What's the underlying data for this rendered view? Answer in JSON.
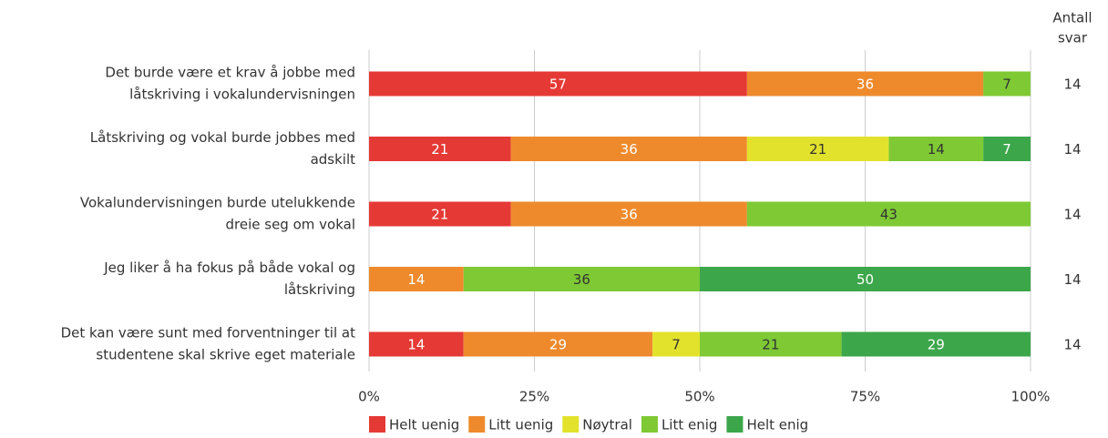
{
  "chart_data": {
    "type": "stacked_barh",
    "categories": [
      [
        "Det burde være et krav å jobbe med",
        "låtskriving i vokalundervisningen"
      ],
      [
        "Låtskriving og vokal burde jobbes med",
        "adskilt"
      ],
      [
        "Vokalundervisningen burde utelukkende",
        "dreie seg om vokal"
      ],
      [
        "Jeg liker å ha fokus på både vokal og",
        "låtskriving"
      ],
      [
        "Det kan være sunt med forventninger til at",
        "studentene skal skrive eget materiale"
      ]
    ],
    "series": [
      {
        "name": "Helt uenig",
        "color": "#e53935",
        "label_color": "#ffffff",
        "values": [
          57.14,
          21.43,
          21.43,
          null,
          14.29
        ],
        "value_labels": [
          "57",
          "21",
          "21",
          null,
          "14"
        ]
      },
      {
        "name": "Litt uenig",
        "color": "#ee8a2c",
        "label_color": "#ffffff",
        "values": [
          35.71,
          35.71,
          35.71,
          14.29,
          28.57
        ],
        "value_labels": [
          "36",
          "36",
          "36",
          "14",
          "29"
        ]
      },
      {
        "name": "Nøytral",
        "color": "#e2e22c",
        "label_color": "#333333",
        "values": [
          null,
          21.43,
          null,
          null,
          7.14
        ],
        "value_labels": [
          null,
          "21",
          null,
          null,
          "7"
        ]
      },
      {
        "name": "Litt enig",
        "color": "#7ec934",
        "label_color": "#333333",
        "values": [
          7.14,
          14.29,
          42.86,
          35.71,
          21.43
        ],
        "value_labels": [
          "7",
          "14",
          "43",
          "36",
          "21"
        ]
      },
      {
        "name": "Helt enig",
        "color": "#3ca64a",
        "label_color": "#ffffff",
        "values": [
          null,
          7.14,
          null,
          50,
          28.57
        ],
        "value_labels": [
          null,
          "7",
          null,
          "50",
          "29"
        ]
      }
    ],
    "xlim": [
      0,
      100
    ],
    "xticks": [
      {
        "value": 0,
        "label": "0%"
      },
      {
        "value": 25,
        "label": "25%"
      },
      {
        "value": 50,
        "label": "50%"
      },
      {
        "value": 75,
        "label": "75%"
      },
      {
        "value": 100,
        "label": "100%"
      }
    ],
    "grid": true,
    "counts_title": [
      "Antall",
      "svar"
    ],
    "counts": [
      14,
      14,
      14,
      14,
      14
    ],
    "legend": "bottom"
  }
}
